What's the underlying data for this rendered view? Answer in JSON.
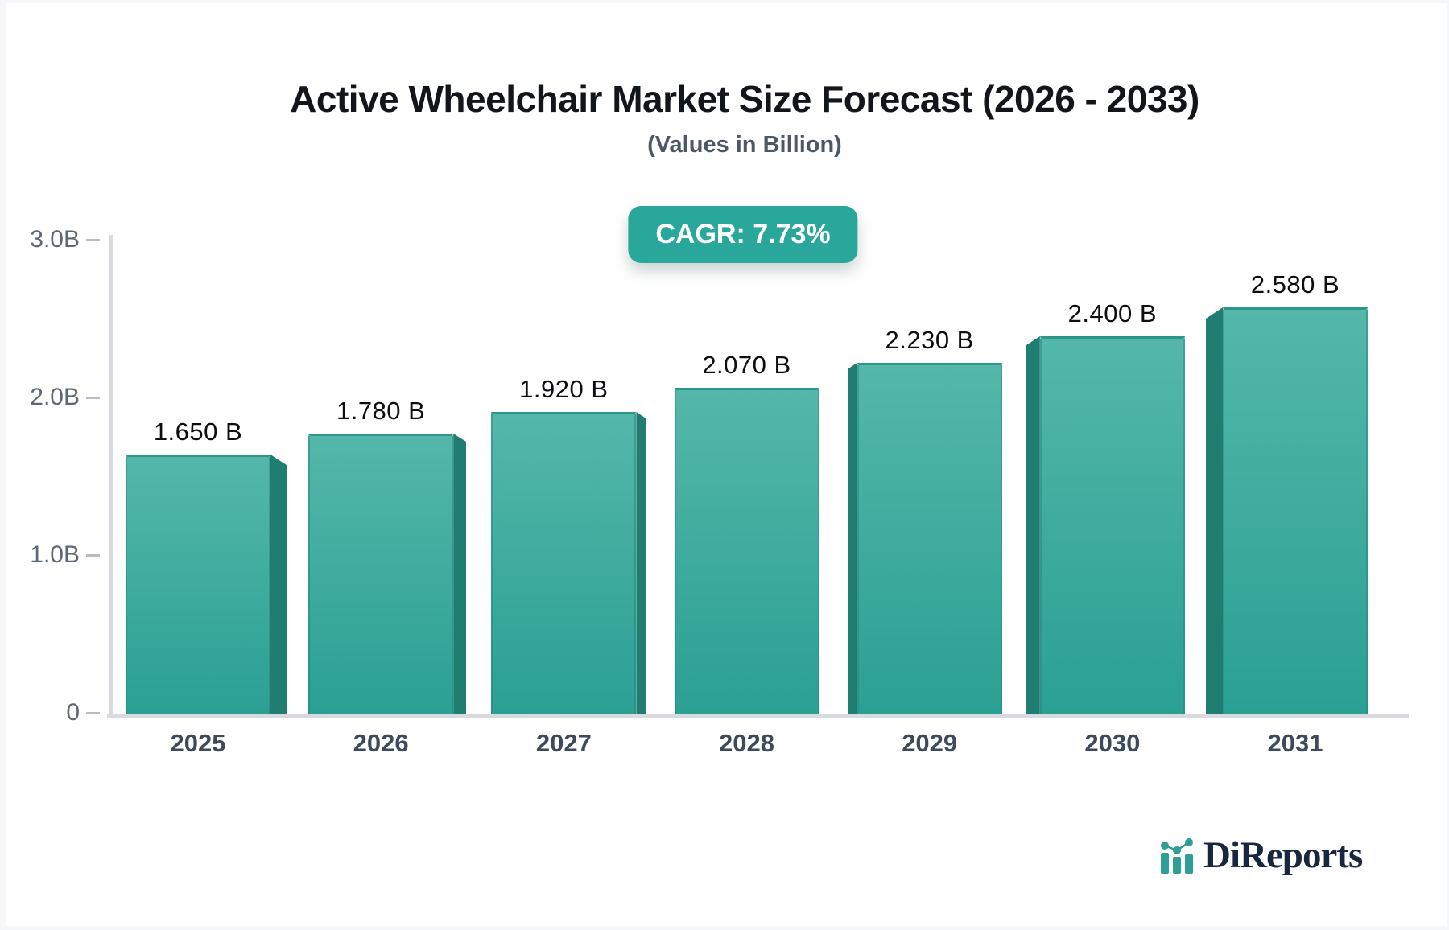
{
  "header": {
    "title": "Active Wheelchair Market Size Forecast (2026 - 2033)",
    "subtitle": "(Values in Billion)"
  },
  "badge": {
    "label": "CAGR: 7.73%"
  },
  "logo": {
    "text": "DiReports",
    "icon": "mini-bar-trend-icon",
    "icon_color": "#2f9e95",
    "text_color": "#18263f"
  },
  "chart_data": {
    "type": "bar",
    "title": "Active Wheelchair Market Size Forecast (2026 - 2033)",
    "subtitle": "(Values in Billion)",
    "annotation": "CAGR: 7.73%",
    "categories": [
      "2025",
      "2026",
      "2027",
      "2028",
      "2029",
      "2030",
      "2031"
    ],
    "values": [
      1.65,
      1.78,
      1.92,
      2.07,
      2.23,
      2.4,
      2.58
    ],
    "data_labels": [
      "1.650 B",
      "1.780 B",
      "1.920 B",
      "2.070 B",
      "2.230 B",
      "2.400 B",
      "2.580 B"
    ],
    "ylim": [
      0,
      3
    ],
    "yticks": [
      {
        "v": 0,
        "label": "0"
      },
      {
        "v": 1,
        "label": "1.0B"
      },
      {
        "v": 2,
        "label": "2.0B"
      },
      {
        "v": 3,
        "label": "3.0B"
      }
    ],
    "xlabel": "",
    "ylabel": "",
    "grid": false,
    "legend": false,
    "bar_style": "3d-perspective",
    "colors": {
      "bar_face_top": "#54b7aa",
      "bar_face_bottom": "#2aa093",
      "bar_side": "#1f7d72",
      "bar_edge": "#2c968b",
      "axis_line": "#d8dade",
      "tick_mark": "#b6bcc4",
      "ytick_text": "#5d6875",
      "xtick_text": "#3e4a5c",
      "value_text": "#0c0e12",
      "badge_bg": "#2aa79b",
      "badge_text": "#ffffff"
    }
  }
}
